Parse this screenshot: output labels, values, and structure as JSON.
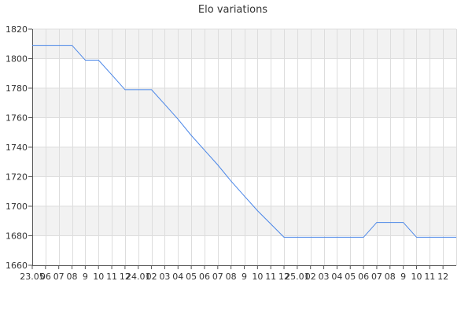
{
  "chart_data": {
    "type": "line",
    "title": "Elo variations",
    "xlabel": "",
    "ylabel": "",
    "ylim": [
      1660,
      1820
    ],
    "y_ticks": [
      1660,
      1680,
      1700,
      1720,
      1740,
      1760,
      1780,
      1800,
      1820
    ],
    "x_tick_labels": [
      "23.05",
      "06",
      "07",
      "08",
      "9",
      "10",
      "11",
      "12",
      "24.01",
      "02",
      "03",
      "04",
      "05",
      "06",
      "07",
      "08",
      "9",
      "10",
      "11",
      "12",
      "25.01",
      "02",
      "03",
      "04",
      "05",
      "06",
      "07",
      "08",
      "9",
      "10",
      "11",
      "12"
    ],
    "grid": true,
    "band_fill": "#f2f2f2",
    "grid_color": "#dddddd",
    "axis_color": "#555555",
    "line_color": "#4a86e8",
    "series": [
      {
        "values": [
          1809,
          1809,
          1809,
          1809,
          1799,
          1799,
          1789,
          1779,
          1779,
          1779,
          1769,
          1759,
          1748,
          1738,
          1728,
          1717,
          1707,
          1697,
          1688,
          1679,
          1679,
          1679,
          1679,
          1679,
          1679,
          1679,
          1689,
          1689,
          1689,
          1679,
          1679,
          1679,
          1679
        ]
      }
    ]
  }
}
